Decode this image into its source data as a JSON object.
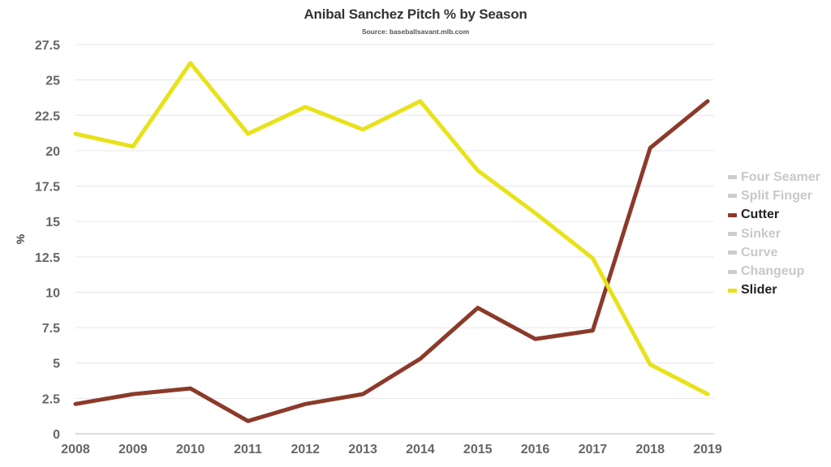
{
  "chart_data": {
    "type": "line",
    "title": "Anibal Sanchez Pitch % by Season",
    "subtitle": "Source: baseballsavant.mlb.com",
    "xlabel": "",
    "ylabel": "%",
    "x": [
      2008,
      2009,
      2010,
      2011,
      2012,
      2013,
      2014,
      2015,
      2016,
      2017,
      2018,
      2019
    ],
    "ylim": [
      0,
      27.5
    ],
    "yticks": [
      "0",
      "2.5",
      "5",
      "7.5",
      "10",
      "12.5",
      "15",
      "17.5",
      "20",
      "22.5",
      "25",
      "27.5"
    ],
    "grid": true,
    "legend_placement": "right",
    "series": [
      {
        "name": "Cutter",
        "color": "#8b3a2a",
        "values": [
          2.1,
          2.8,
          3.2,
          0.9,
          2.1,
          2.8,
          5.3,
          8.9,
          6.7,
          7.3,
          20.2,
          23.5
        ]
      },
      {
        "name": "Slider",
        "color": "#e8e21a",
        "values": [
          21.2,
          20.3,
          26.2,
          21.2,
          23.1,
          21.5,
          23.5,
          18.6,
          15.6,
          12.4,
          4.9,
          2.8
        ]
      }
    ],
    "legend": [
      {
        "label": "Four Seamer",
        "color": "#cccccc",
        "active": false
      },
      {
        "label": "Split Finger",
        "color": "#cccccc",
        "active": false
      },
      {
        "label": "Cutter",
        "color": "#8b3a2a",
        "active": true
      },
      {
        "label": "Sinker",
        "color": "#cccccc",
        "active": false
      },
      {
        "label": "Curve",
        "color": "#cccccc",
        "active": false
      },
      {
        "label": "Changeup",
        "color": "#cccccc",
        "active": false
      },
      {
        "label": "Slider",
        "color": "#e8e21a",
        "active": true
      }
    ]
  }
}
